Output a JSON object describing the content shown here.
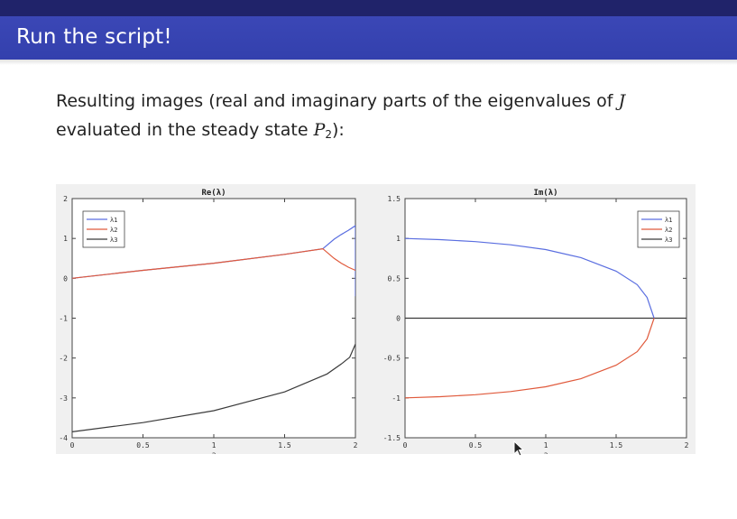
{
  "slide": {
    "title": "Run the script!",
    "text_line1_a": "Resulting images (real and imaginary parts of the eigenvalues of ",
    "text_line1_J": "J",
    "text_line2_a": "evaluated in the steady state ",
    "text_line2_P": "P",
    "text_line2_sub": "2",
    "text_line2_b": "):"
  },
  "colors": {
    "header_dark": "#20236a",
    "header": "#3a45b3",
    "lambda1": "#5a6ee0",
    "lambda2": "#e05a3c",
    "lambda3": "#3a3a3a"
  },
  "chart_data": [
    {
      "type": "line",
      "title": "Re(λ)",
      "xlabel": "a",
      "ylabel": "",
      "xlim": [
        0,
        2
      ],
      "ylim": [
        -4,
        2
      ],
      "xticks": [
        "0",
        "0.5",
        "1",
        "1.5",
        "2"
      ],
      "yticks": [
        "2",
        "1",
        "0",
        "-1",
        "-2",
        "-3",
        "-4"
      ],
      "legend": {
        "position": "top-left",
        "labels": [
          "λ1",
          "λ2",
          "λ3"
        ]
      },
      "series": [
        {
          "name": "λ1",
          "x": [
            0,
            0.5,
            1,
            1.5,
            1.77,
            1.85,
            1.9,
            1.95,
            2.0,
            2.0,
            2.0
          ],
          "y": [
            0,
            0.2,
            0.38,
            0.6,
            0.74,
            0.98,
            1.1,
            1.2,
            1.32,
            0.6,
            -0.45
          ]
        },
        {
          "name": "λ2",
          "x": [
            0,
            0.5,
            1,
            1.5,
            1.77,
            1.85,
            1.9,
            1.95,
            2.0
          ],
          "y": [
            0,
            0.2,
            0.38,
            0.6,
            0.74,
            0.5,
            0.38,
            0.28,
            0.2
          ]
        },
        {
          "name": "λ3",
          "x": [
            0,
            0.5,
            1,
            1.5,
            1.8,
            1.9,
            1.96,
            2.0
          ],
          "y": [
            -3.85,
            -3.62,
            -3.32,
            -2.85,
            -2.4,
            -2.15,
            -1.98,
            -1.65
          ]
        }
      ]
    },
    {
      "type": "line",
      "title": "Im(λ)",
      "xlabel": "a",
      "ylabel": "",
      "xlim": [
        0,
        2
      ],
      "ylim": [
        -1.5,
        1.5
      ],
      "xticks": [
        "0",
        "0.5",
        "1",
        "1.5",
        "2"
      ],
      "yticks": [
        "1.5",
        "1",
        "0.5",
        "0",
        "-0.5",
        "-1",
        "-1.5"
      ],
      "legend": {
        "position": "top-right",
        "labels": [
          "λ1",
          "λ2",
          "λ3"
        ]
      },
      "series": [
        {
          "name": "λ1",
          "x": [
            0,
            0.25,
            0.5,
            0.75,
            1.0,
            1.25,
            1.5,
            1.65,
            1.72,
            1.77
          ],
          "y": [
            1.0,
            0.985,
            0.96,
            0.92,
            0.86,
            0.76,
            0.59,
            0.42,
            0.26,
            0
          ]
        },
        {
          "name": "λ2",
          "x": [
            0,
            0.25,
            0.5,
            0.75,
            1.0,
            1.25,
            1.5,
            1.65,
            1.72,
            1.77
          ],
          "y": [
            -1.0,
            -0.985,
            -0.96,
            -0.92,
            -0.86,
            -0.76,
            -0.59,
            -0.42,
            -0.26,
            0
          ]
        },
        {
          "name": "λ3",
          "x": [
            0,
            2
          ],
          "y": [
            0,
            0
          ]
        }
      ]
    }
  ]
}
